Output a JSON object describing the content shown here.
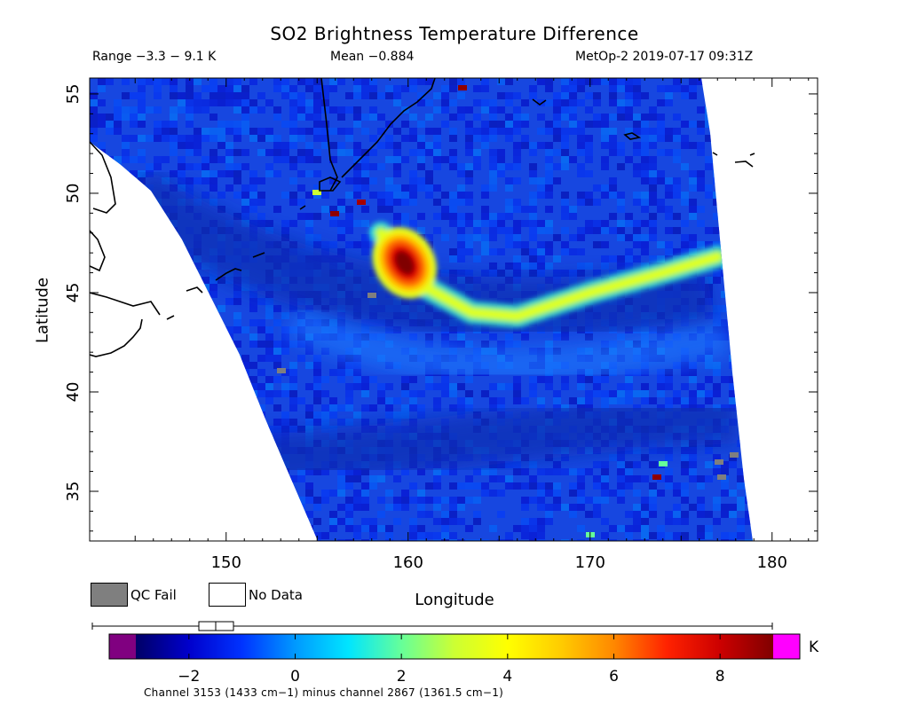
{
  "title": "SO2 Brightness Temperature Difference",
  "range_text": "Range −3.3 − 9.1 K",
  "mean_text": "Mean −0.884",
  "satellite_text": "MetOp-2 2019-07-17 09:31Z",
  "legend": {
    "qc_fail_label": "QC Fail",
    "no_data_label": "No Data",
    "qc_fail_color": "#7f7f7f",
    "no_data_color": "#ffffff"
  },
  "colorbar": {
    "unit": "K",
    "ticks": [
      "−2",
      "0",
      "2",
      "4",
      "6",
      "8"
    ],
    "tick_values": [
      -2,
      0,
      2,
      4,
      6,
      8
    ],
    "min": -3.0,
    "max": 9.0,
    "underflow_color": "#800080",
    "overflow_color": "#ff00ff",
    "stops": [
      "#000066",
      "#0000cc",
      "#0033ff",
      "#0099ff",
      "#00e5ff",
      "#66ff99",
      "#ccff33",
      "#ffff00",
      "#ffcc00",
      "#ff8800",
      "#ff2200",
      "#cc0000",
      "#800000"
    ],
    "caption": "Channel 3153 (1433 cm−1) minus channel 2867 (1361.5 cm−1)"
  },
  "chart_data": {
    "type": "heatmap",
    "title": "SO2 Brightness Temperature Difference",
    "xlabel": "Longitude",
    "ylabel": "Latitude",
    "xlim": [
      142.5,
      182.5
    ],
    "ylim": [
      32.5,
      55.8
    ],
    "xticks": [
      150,
      160,
      170,
      180
    ],
    "yticks": [
      35,
      40,
      45,
      50,
      55
    ],
    "value_range": [
      -3.3,
      9.1
    ],
    "mean": -0.884,
    "units": "K",
    "plume": {
      "max_value_location": [
        160.0,
        46.5
      ],
      "max_value": 9.0,
      "trail_points": [
        [
          158.5,
          48.0
        ],
        [
          160.5,
          45.5
        ],
        [
          163.5,
          44.0
        ],
        [
          166.0,
          43.8
        ],
        [
          170.0,
          45.0
        ],
        [
          174.0,
          46.0
        ],
        [
          177.0,
          46.8
        ]
      ],
      "trail_value": 3.5
    }
  }
}
